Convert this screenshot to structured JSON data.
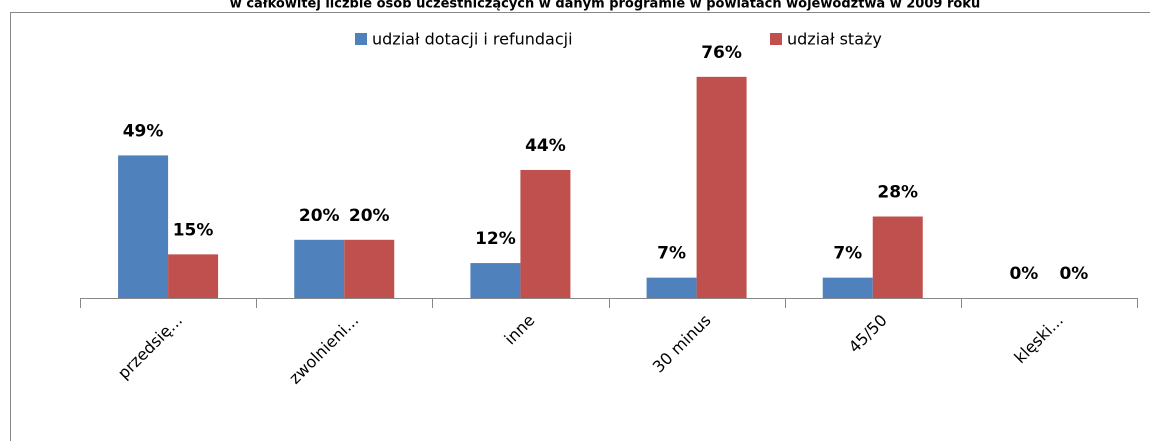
{
  "chart_data": {
    "type": "bar",
    "title": "w całkowitej liczbie osób uczestniczących w danym programie w powiatach województwa w 2009 roku",
    "categories": [
      "przedsię...",
      "zwolnieni...",
      "inne",
      "30 minus",
      "45/50",
      "klęski..."
    ],
    "series": [
      {
        "name": "udział dotacji i refundacji",
        "color": "#4f81bd",
        "values": [
          49,
          20,
          12,
          7,
          7,
          0
        ],
        "value_labels": [
          "49%",
          "20%",
          "12%",
          "7%",
          "7%",
          "0%"
        ]
      },
      {
        "name": "udział staży",
        "color": "#c0504d",
        "values": [
          15,
          20,
          44,
          76,
          28,
          0
        ],
        "value_labels": [
          "15%",
          "20%",
          "44%",
          "76%",
          "28%",
          "0%"
        ]
      }
    ],
    "legend": "top"
  }
}
